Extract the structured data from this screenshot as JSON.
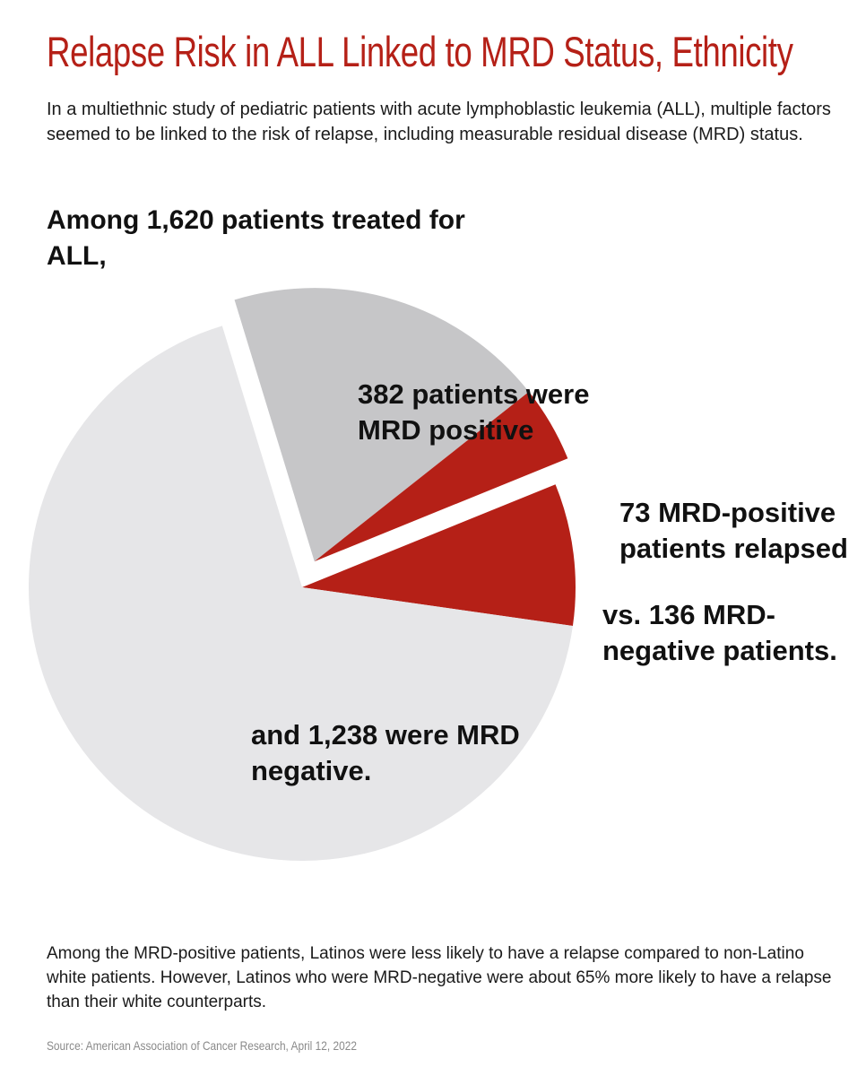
{
  "title": "Relapse Risk in ALL Linked to MRD Status, Ethnicity",
  "intro": "In a multiethnic study of pediatric patients with acute lymphoblastic leukemia (ALL), multiple factors seemed to be linked to the risk of relapse, including measurable residual disease (MRD) status.",
  "lead": "Among 1,620 patients treated for ALL,",
  "closing": "Among the MRD-positive patients, Latinos were less likely to have a relapse compared to non-Latino white patients. However, Latinos who were MRD-negative were about 65% more likely to have a relapse than their white counterparts.",
  "source": "Source: American Association of Cancer Research, April 12, 2022",
  "chart_data": {
    "type": "pie",
    "total": 1620,
    "slices": [
      {
        "label_text": "382 patients were MRD positive",
        "value": 309,
        "color": "#c6c6c8",
        "exploded": true
      },
      {
        "label_text": "73 MRD-positive patients relapsed",
        "value": 73,
        "color": "#b52017",
        "exploded": true
      },
      {
        "label_text": "vs. 136 MRD-negative patients.",
        "value": 136,
        "color": "#b52017",
        "exploded": false
      },
      {
        "label_text": "and 1,238 were MRD negative.",
        "value": 1102,
        "color": "#e6e6e8",
        "exploded": false
      }
    ],
    "labels": {
      "mrd_positive": "382 patients were MRD positive",
      "mrd_positive_relapsed": "73 MRD-positive patients relapsed",
      "mrd_negative_relapsed": "vs. 136 MRD-negative patients.",
      "mrd_negative": "and 1,238 were MRD negative."
    }
  }
}
